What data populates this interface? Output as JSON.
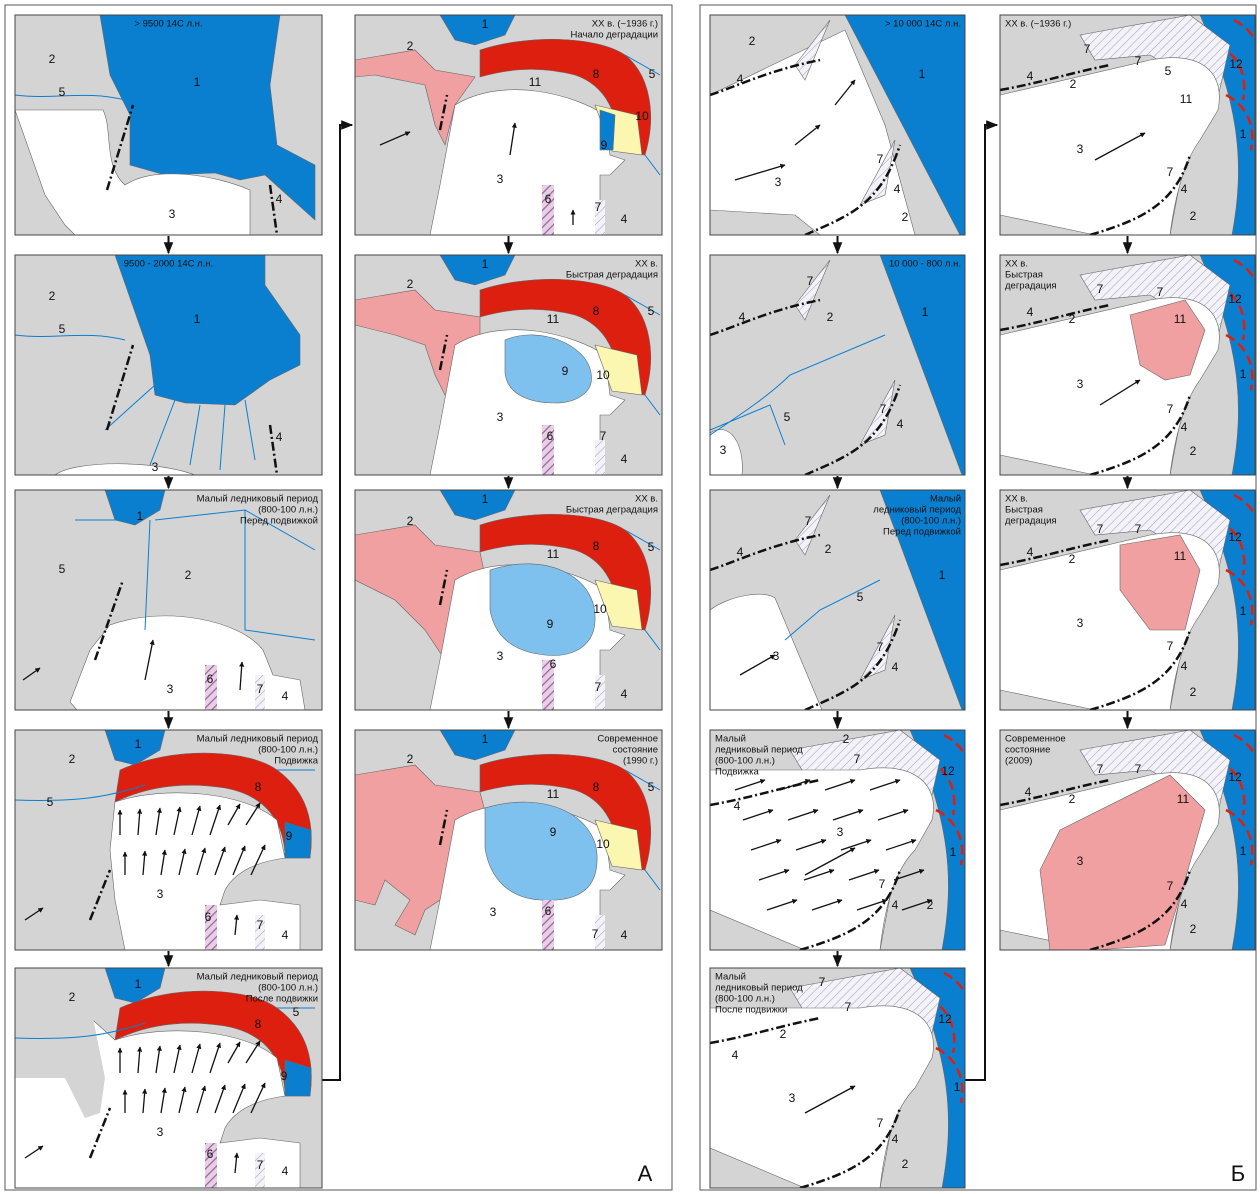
{
  "panel_a": {
    "letter": "А",
    "maps": [
      {
        "caption": [
          "> 9500 14С л.н."
        ],
        "labels": [
          "1",
          "2",
          "5",
          "3",
          "4"
        ]
      },
      {
        "caption": [
          "9500 - 2000 14С л.н."
        ],
        "labels": [
          "1",
          "2",
          "5",
          "3",
          "4"
        ]
      },
      {
        "caption": [
          "Малый ледниковый период",
          "(800-100 л.н.)",
          "Перед подвижкой"
        ],
        "labels": [
          "1",
          "2",
          "5",
          "3",
          "6",
          "7",
          "4"
        ]
      },
      {
        "caption": [
          "Малый ледниковый период",
          "(800-100 л.н.)",
          "Подвижка"
        ],
        "labels": [
          "1",
          "2",
          "5",
          "8",
          "9",
          "3",
          "6",
          "7",
          "4"
        ]
      },
      {
        "caption": [
          "Малый ледниковый период",
          "(800-100 л.н.)",
          "После подвижки"
        ],
        "labels": [
          "1",
          "2",
          "5",
          "8",
          "9",
          "3",
          "6",
          "7",
          "4"
        ]
      },
      {
        "caption": [
          "XX в. (~1936 г.)",
          "Начало деградации"
        ],
        "labels": [
          "1",
          "2",
          "11",
          "8",
          "5",
          "10",
          "9",
          "3",
          "6",
          "7",
          "4"
        ]
      },
      {
        "caption": [
          "XX в.",
          "Быстрая деградация"
        ],
        "labels": [
          "1",
          "2",
          "11",
          "8",
          "5",
          "9",
          "10",
          "3",
          "6",
          "7",
          "4"
        ]
      },
      {
        "caption": [
          "XX в.",
          "Быстрая деградация"
        ],
        "labels": [
          "1",
          "2",
          "11",
          "8",
          "5",
          "9",
          "10",
          "3",
          "6",
          "7",
          "4"
        ]
      },
      {
        "caption": [
          "Современное",
          "состояние",
          "(1990 г.)"
        ],
        "labels": [
          "1",
          "2",
          "11",
          "8",
          "5",
          "9",
          "10",
          "3",
          "6",
          "7",
          "4"
        ]
      }
    ]
  },
  "panel_b": {
    "letter": "Б",
    "maps": [
      {
        "caption": [
          "> 10 000 14С л.н."
        ],
        "labels": [
          "2",
          "4",
          "1",
          "3",
          "7",
          "4",
          "2"
        ]
      },
      {
        "caption": [
          "10 000 - 800 л.н."
        ],
        "labels": [
          "7",
          "4",
          "2",
          "1",
          "5",
          "3",
          "7",
          "4"
        ]
      },
      {
        "caption": [
          "Малый",
          "ледниковый период",
          "(800-100 л.н.)",
          "Перед подвижкой"
        ],
        "labels": [
          "7",
          "4",
          "2",
          "5",
          "1",
          "3",
          "7",
          "4"
        ]
      },
      {
        "caption": [
          "Малый",
          "ледниковый период",
          "(800-100 л.н.)",
          "Подвижка"
        ],
        "labels": [
          "2",
          "7",
          "12",
          "4",
          "3",
          "1",
          "7",
          "4",
          "2"
        ]
      },
      {
        "caption": [
          "Малый",
          "ледниковый период",
          "(800-100 л.н.)",
          "После подвижки"
        ],
        "labels": [
          "7",
          "7",
          "12",
          "2",
          "4",
          "3",
          "1",
          "7",
          "4",
          "2"
        ]
      },
      {
        "caption": [
          "XX в. (~1936 г.)"
        ],
        "labels": [
          "7",
          "4",
          "2",
          "7",
          "5",
          "12",
          "11",
          "3",
          "1",
          "7",
          "4",
          "2"
        ]
      },
      {
        "caption": [
          "XX в.",
          "Быстрая",
          "деградация"
        ],
        "labels": [
          "7",
          "4",
          "2",
          "7",
          "12",
          "11",
          "3",
          "1",
          "7",
          "4",
          "2"
        ]
      },
      {
        "caption": [
          "XX в.",
          "Быстрая",
          "деградация"
        ],
        "labels": [
          "7",
          "4",
          "2",
          "7",
          "11",
          "12",
          "3",
          "1",
          "7",
          "4",
          "2"
        ]
      },
      {
        "caption": [
          "Современное",
          "состояние",
          "(2009)"
        ],
        "labels": [
          "7",
          "4",
          "2",
          "7",
          "11",
          "12",
          "3",
          "1",
          "7",
          "4",
          "2"
        ]
      }
    ]
  }
}
